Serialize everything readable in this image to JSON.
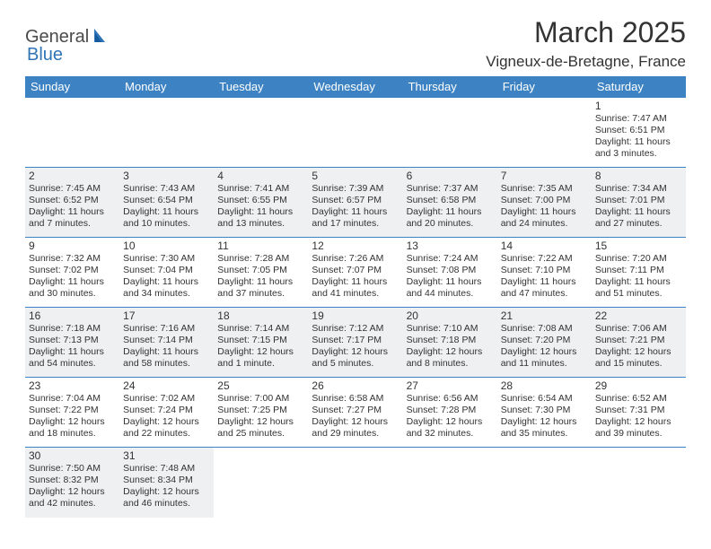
{
  "logo": {
    "part1": "General",
    "part2": "Blue"
  },
  "title": "March 2025",
  "location": "Vigneux-de-Bretagne, France",
  "colors": {
    "header_bg": "#3d83c4",
    "header_text": "#ffffff",
    "border": "#3d83c4",
    "shaded_bg": "#eef0f2",
    "text": "#333333",
    "logo_blue": "#2f74b5",
    "logo_gray": "#4a4a4a"
  },
  "weekdays": [
    "Sunday",
    "Monday",
    "Tuesday",
    "Wednesday",
    "Thursday",
    "Friday",
    "Saturday"
  ],
  "weeks": [
    [
      null,
      null,
      null,
      null,
      null,
      null,
      {
        "n": "1",
        "sr": "Sunrise: 7:47 AM",
        "ss": "Sunset: 6:51 PM",
        "d1": "Daylight: 11 hours",
        "d2": "and 3 minutes."
      }
    ],
    [
      {
        "n": "2",
        "sr": "Sunrise: 7:45 AM",
        "ss": "Sunset: 6:52 PM",
        "d1": "Daylight: 11 hours",
        "d2": "and 7 minutes."
      },
      {
        "n": "3",
        "sr": "Sunrise: 7:43 AM",
        "ss": "Sunset: 6:54 PM",
        "d1": "Daylight: 11 hours",
        "d2": "and 10 minutes."
      },
      {
        "n": "4",
        "sr": "Sunrise: 7:41 AM",
        "ss": "Sunset: 6:55 PM",
        "d1": "Daylight: 11 hours",
        "d2": "and 13 minutes."
      },
      {
        "n": "5",
        "sr": "Sunrise: 7:39 AM",
        "ss": "Sunset: 6:57 PM",
        "d1": "Daylight: 11 hours",
        "d2": "and 17 minutes."
      },
      {
        "n": "6",
        "sr": "Sunrise: 7:37 AM",
        "ss": "Sunset: 6:58 PM",
        "d1": "Daylight: 11 hours",
        "d2": "and 20 minutes."
      },
      {
        "n": "7",
        "sr": "Sunrise: 7:35 AM",
        "ss": "Sunset: 7:00 PM",
        "d1": "Daylight: 11 hours",
        "d2": "and 24 minutes."
      },
      {
        "n": "8",
        "sr": "Sunrise: 7:34 AM",
        "ss": "Sunset: 7:01 PM",
        "d1": "Daylight: 11 hours",
        "d2": "and 27 minutes."
      }
    ],
    [
      {
        "n": "9",
        "sr": "Sunrise: 7:32 AM",
        "ss": "Sunset: 7:02 PM",
        "d1": "Daylight: 11 hours",
        "d2": "and 30 minutes."
      },
      {
        "n": "10",
        "sr": "Sunrise: 7:30 AM",
        "ss": "Sunset: 7:04 PM",
        "d1": "Daylight: 11 hours",
        "d2": "and 34 minutes."
      },
      {
        "n": "11",
        "sr": "Sunrise: 7:28 AM",
        "ss": "Sunset: 7:05 PM",
        "d1": "Daylight: 11 hours",
        "d2": "and 37 minutes."
      },
      {
        "n": "12",
        "sr": "Sunrise: 7:26 AM",
        "ss": "Sunset: 7:07 PM",
        "d1": "Daylight: 11 hours",
        "d2": "and 41 minutes."
      },
      {
        "n": "13",
        "sr": "Sunrise: 7:24 AM",
        "ss": "Sunset: 7:08 PM",
        "d1": "Daylight: 11 hours",
        "d2": "and 44 minutes."
      },
      {
        "n": "14",
        "sr": "Sunrise: 7:22 AM",
        "ss": "Sunset: 7:10 PM",
        "d1": "Daylight: 11 hours",
        "d2": "and 47 minutes."
      },
      {
        "n": "15",
        "sr": "Sunrise: 7:20 AM",
        "ss": "Sunset: 7:11 PM",
        "d1": "Daylight: 11 hours",
        "d2": "and 51 minutes."
      }
    ],
    [
      {
        "n": "16",
        "sr": "Sunrise: 7:18 AM",
        "ss": "Sunset: 7:13 PM",
        "d1": "Daylight: 11 hours",
        "d2": "and 54 minutes."
      },
      {
        "n": "17",
        "sr": "Sunrise: 7:16 AM",
        "ss": "Sunset: 7:14 PM",
        "d1": "Daylight: 11 hours",
        "d2": "and 58 minutes."
      },
      {
        "n": "18",
        "sr": "Sunrise: 7:14 AM",
        "ss": "Sunset: 7:15 PM",
        "d1": "Daylight: 12 hours",
        "d2": "and 1 minute."
      },
      {
        "n": "19",
        "sr": "Sunrise: 7:12 AM",
        "ss": "Sunset: 7:17 PM",
        "d1": "Daylight: 12 hours",
        "d2": "and 5 minutes."
      },
      {
        "n": "20",
        "sr": "Sunrise: 7:10 AM",
        "ss": "Sunset: 7:18 PM",
        "d1": "Daylight: 12 hours",
        "d2": "and 8 minutes."
      },
      {
        "n": "21",
        "sr": "Sunrise: 7:08 AM",
        "ss": "Sunset: 7:20 PM",
        "d1": "Daylight: 12 hours",
        "d2": "and 11 minutes."
      },
      {
        "n": "22",
        "sr": "Sunrise: 7:06 AM",
        "ss": "Sunset: 7:21 PM",
        "d1": "Daylight: 12 hours",
        "d2": "and 15 minutes."
      }
    ],
    [
      {
        "n": "23",
        "sr": "Sunrise: 7:04 AM",
        "ss": "Sunset: 7:22 PM",
        "d1": "Daylight: 12 hours",
        "d2": "and 18 minutes."
      },
      {
        "n": "24",
        "sr": "Sunrise: 7:02 AM",
        "ss": "Sunset: 7:24 PM",
        "d1": "Daylight: 12 hours",
        "d2": "and 22 minutes."
      },
      {
        "n": "25",
        "sr": "Sunrise: 7:00 AM",
        "ss": "Sunset: 7:25 PM",
        "d1": "Daylight: 12 hours",
        "d2": "and 25 minutes."
      },
      {
        "n": "26",
        "sr": "Sunrise: 6:58 AM",
        "ss": "Sunset: 7:27 PM",
        "d1": "Daylight: 12 hours",
        "d2": "and 29 minutes."
      },
      {
        "n": "27",
        "sr": "Sunrise: 6:56 AM",
        "ss": "Sunset: 7:28 PM",
        "d1": "Daylight: 12 hours",
        "d2": "and 32 minutes."
      },
      {
        "n": "28",
        "sr": "Sunrise: 6:54 AM",
        "ss": "Sunset: 7:30 PM",
        "d1": "Daylight: 12 hours",
        "d2": "and 35 minutes."
      },
      {
        "n": "29",
        "sr": "Sunrise: 6:52 AM",
        "ss": "Sunset: 7:31 PM",
        "d1": "Daylight: 12 hours",
        "d2": "and 39 minutes."
      }
    ],
    [
      {
        "n": "30",
        "sr": "Sunrise: 7:50 AM",
        "ss": "Sunset: 8:32 PM",
        "d1": "Daylight: 12 hours",
        "d2": "and 42 minutes."
      },
      {
        "n": "31",
        "sr": "Sunrise: 7:48 AM",
        "ss": "Sunset: 8:34 PM",
        "d1": "Daylight: 12 hours",
        "d2": "and 46 minutes."
      },
      null,
      null,
      null,
      null,
      null
    ]
  ]
}
